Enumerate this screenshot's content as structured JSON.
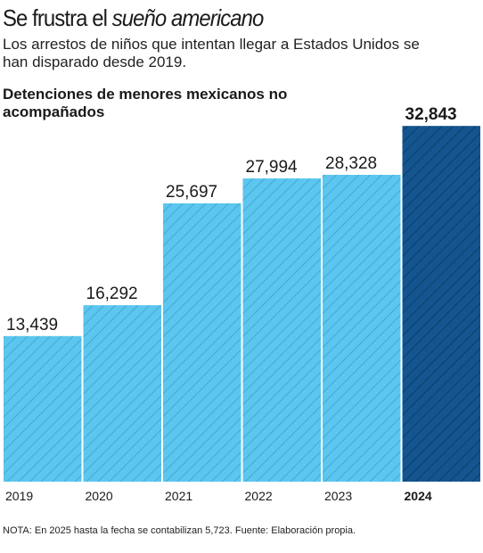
{
  "title": {
    "main": "Se frustra el ",
    "italic": "sueño americano"
  },
  "subtitle": "Los arrestos de niños que intentan llegar a Estados Unidos se han disparado desde 2019.",
  "note": "NOTA: En 2025 hasta la fecha se contabilizan 5,723. Fuente: Elaboración propia.",
  "colors": {
    "bar": "#5cc6ee",
    "highlight": "#14558f",
    "hatch_light": "#3fa9db",
    "hatch_dark": "#0c3d6b"
  },
  "chart_data": {
    "type": "bar",
    "title": "Detenciones de menores mexicanos no acompañados",
    "categories": [
      "2019",
      "2020",
      "2021",
      "2022",
      "2023",
      "2024"
    ],
    "values": [
      13439,
      16292,
      25697,
      27994,
      28328,
      32843
    ],
    "value_labels": [
      "13,439",
      "16,292",
      "25,697",
      "27,994",
      "28,328",
      "32,843"
    ],
    "highlight_index": 5,
    "ylim": [
      0,
      35000
    ],
    "grid": false,
    "legend": "none",
    "xlabel": "",
    "ylabel": ""
  }
}
